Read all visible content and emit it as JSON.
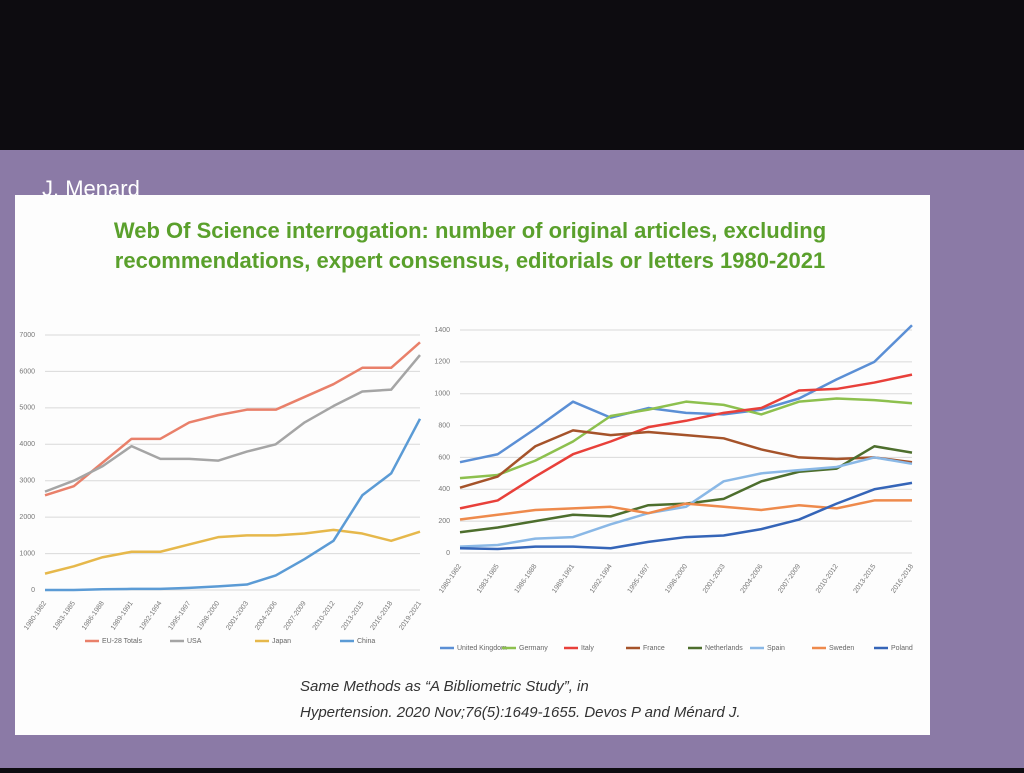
{
  "slide": {
    "author": "J. Menard",
    "title": [
      "Web Of Science interrogation: number of original articles, excluding",
      "recommendations, expert consensus, editorials or letters 1980-2021"
    ],
    "citation": [
      "Same Methods as “A Bibliometric Study”, in",
      "Hypertension. 2020 Nov;76(5):1649-1655. Devos P and Ménard J."
    ]
  },
  "chart_data": [
    {
      "type": "line",
      "grid": true,
      "legend": "bottom",
      "categories": [
        "1980-1982",
        "1983-1985",
        "1986-1988",
        "1989-1991",
        "1992-1994",
        "1995-1997",
        "1998-2000",
        "2001-2003",
        "2004-2006",
        "2007-2009",
        "2010-2012",
        "2013-2015",
        "2016-2018",
        "2019-2021"
      ],
      "ylim": [
        0,
        7000
      ],
      "yticks": [
        0,
        1000,
        2000,
        3000,
        4000,
        5000,
        6000,
        7000
      ],
      "series": [
        {
          "name": "EU-28 Totals",
          "color": "#e9806a",
          "values": [
            2600,
            2850,
            3500,
            4150,
            4150,
            4600,
            4800,
            4950,
            4950,
            5300,
            5650,
            6100,
            6100,
            6800
          ]
        },
        {
          "name": "USA",
          "color": "#a5a5a5",
          "values": [
            2700,
            3000,
            3400,
            3950,
            3600,
            3600,
            3550,
            3800,
            4000,
            4600,
            5050,
            5450,
            5500,
            6450
          ]
        },
        {
          "name": "Japan",
          "color": "#e6b84b",
          "values": [
            450,
            650,
            900,
            1050,
            1050,
            1250,
            1450,
            1500,
            1500,
            1550,
            1650,
            1550,
            1350,
            1600
          ]
        },
        {
          "name": "China",
          "color": "#5b9bd5",
          "values": [
            0,
            0,
            20,
            30,
            30,
            60,
            100,
            150,
            400,
            850,
            1350,
            2600,
            3200,
            4700
          ]
        }
      ]
    },
    {
      "type": "line",
      "grid": true,
      "legend": "bottom",
      "categories": [
        "1980-1982",
        "1983-1985",
        "1986-1988",
        "1989-1991",
        "1992-1994",
        "1995-1997",
        "1998-2000",
        "2001-2003",
        "2004-2006",
        "2007-2009",
        "2010-2012",
        "2013-2015",
        "2016-2018"
      ],
      "ylim": [
        0,
        1400
      ],
      "yticks": [
        0,
        200,
        400,
        600,
        800,
        1000,
        1200,
        1400
      ],
      "series": [
        {
          "name": "United Kingdom",
          "color": "#5b8fd5",
          "values": [
            570,
            620,
            780,
            950,
            850,
            910,
            880,
            870,
            900,
            970,
            1090,
            1200,
            1430
          ]
        },
        {
          "name": "Germany",
          "color": "#8dc04e",
          "values": [
            470,
            490,
            580,
            700,
            860,
            900,
            950,
            930,
            870,
            950,
            970,
            960,
            940
          ]
        },
        {
          "name": "Italy",
          "color": "#e8403a",
          "values": [
            280,
            330,
            480,
            620,
            700,
            790,
            830,
            880,
            910,
            1020,
            1030,
            1070,
            1120
          ]
        },
        {
          "name": "France",
          "color": "#a5532a",
          "values": [
            410,
            480,
            670,
            770,
            740,
            760,
            740,
            720,
            650,
            600,
            590,
            600,
            570
          ]
        },
        {
          "name": "Netherlands",
          "color": "#4d6e2d",
          "values": [
            130,
            160,
            200,
            240,
            230,
            300,
            310,
            340,
            450,
            510,
            530,
            670,
            630
          ]
        },
        {
          "name": "Spain",
          "color": "#8ab8e6",
          "values": [
            40,
            50,
            90,
            100,
            180,
            250,
            290,
            450,
            500,
            520,
            540,
            600,
            560
          ]
        },
        {
          "name": "Sweden",
          "color": "#ee8a4c",
          "values": [
            210,
            240,
            270,
            280,
            290,
            250,
            310,
            290,
            270,
            300,
            280,
            330,
            330
          ]
        },
        {
          "name": "Poland",
          "color": "#3565b8",
          "values": [
            30,
            25,
            40,
            40,
            30,
            70,
            100,
            110,
            150,
            210,
            310,
            400,
            440
          ]
        }
      ]
    }
  ]
}
